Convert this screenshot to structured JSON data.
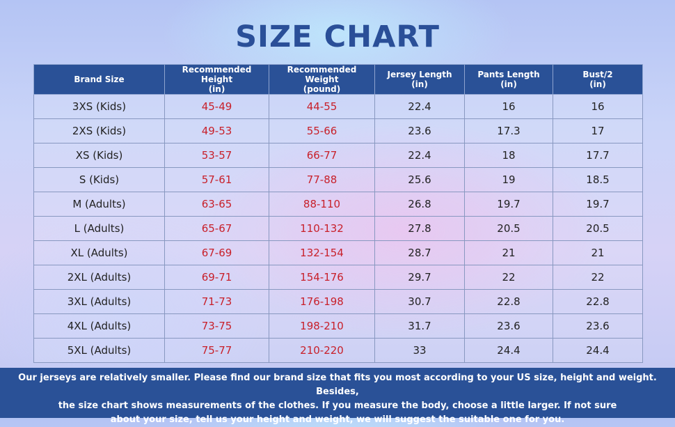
{
  "title": "SIZE CHART",
  "table": {
    "headers": [
      [
        "Brand Size",
        ""
      ],
      [
        "Recommended Height",
        "(in)"
      ],
      [
        "Recommended Weight",
        "(pound)"
      ],
      [
        "Jersey Length",
        "(in)"
      ],
      [
        "Pants Length",
        "(in)"
      ],
      [
        "Bust/2",
        "(in)"
      ]
    ],
    "rows": [
      [
        "3XS (Kids)",
        "45-49",
        "44-55",
        "22.4",
        "16",
        "16"
      ],
      [
        "2XS (Kids)",
        "49-53",
        "55-66",
        "23.6",
        "17.3",
        "17"
      ],
      [
        "XS (Kids)",
        "53-57",
        "66-77",
        "22.4",
        "18",
        "17.7"
      ],
      [
        "S (Kids)",
        "57-61",
        "77-88",
        "25.6",
        "19",
        "18.5"
      ],
      [
        "M (Adults)",
        "63-65",
        "88-110",
        "26.8",
        "19.7",
        "19.7"
      ],
      [
        "L (Adults)",
        "65-67",
        "110-132",
        "27.8",
        "20.5",
        "20.5"
      ],
      [
        "XL (Adults)",
        "67-69",
        "132-154",
        "28.7",
        "21",
        "21"
      ],
      [
        "2XL (Adults)",
        "69-71",
        "154-176",
        "29.7",
        "22",
        "22"
      ],
      [
        "3XL (Adults)",
        "71-73",
        "176-198",
        "30.7",
        "22.8",
        "22.8"
      ],
      [
        "4XL (Adults)",
        "73-75",
        "198-210",
        "31.7",
        "23.6",
        "23.6"
      ],
      [
        "5XL (Adults)",
        "75-77",
        "210-220",
        "33",
        "24.4",
        "24.4"
      ]
    ]
  },
  "footer": {
    "lines": [
      "Our jerseys are relatively smaller. Please find our brand size that fits you most according to your US size, height and weight. Besides,",
      "the size chart shows measurements of the clothes. If you measure the body, choose a little larger. If not sure",
      "about your size, tell us your height and weight, we will suggest the suitable one for you."
    ]
  },
  "colors": {
    "header_bg": "#2a5197",
    "title": "#2a4f98",
    "recommended_text": "#c8202a"
  }
}
